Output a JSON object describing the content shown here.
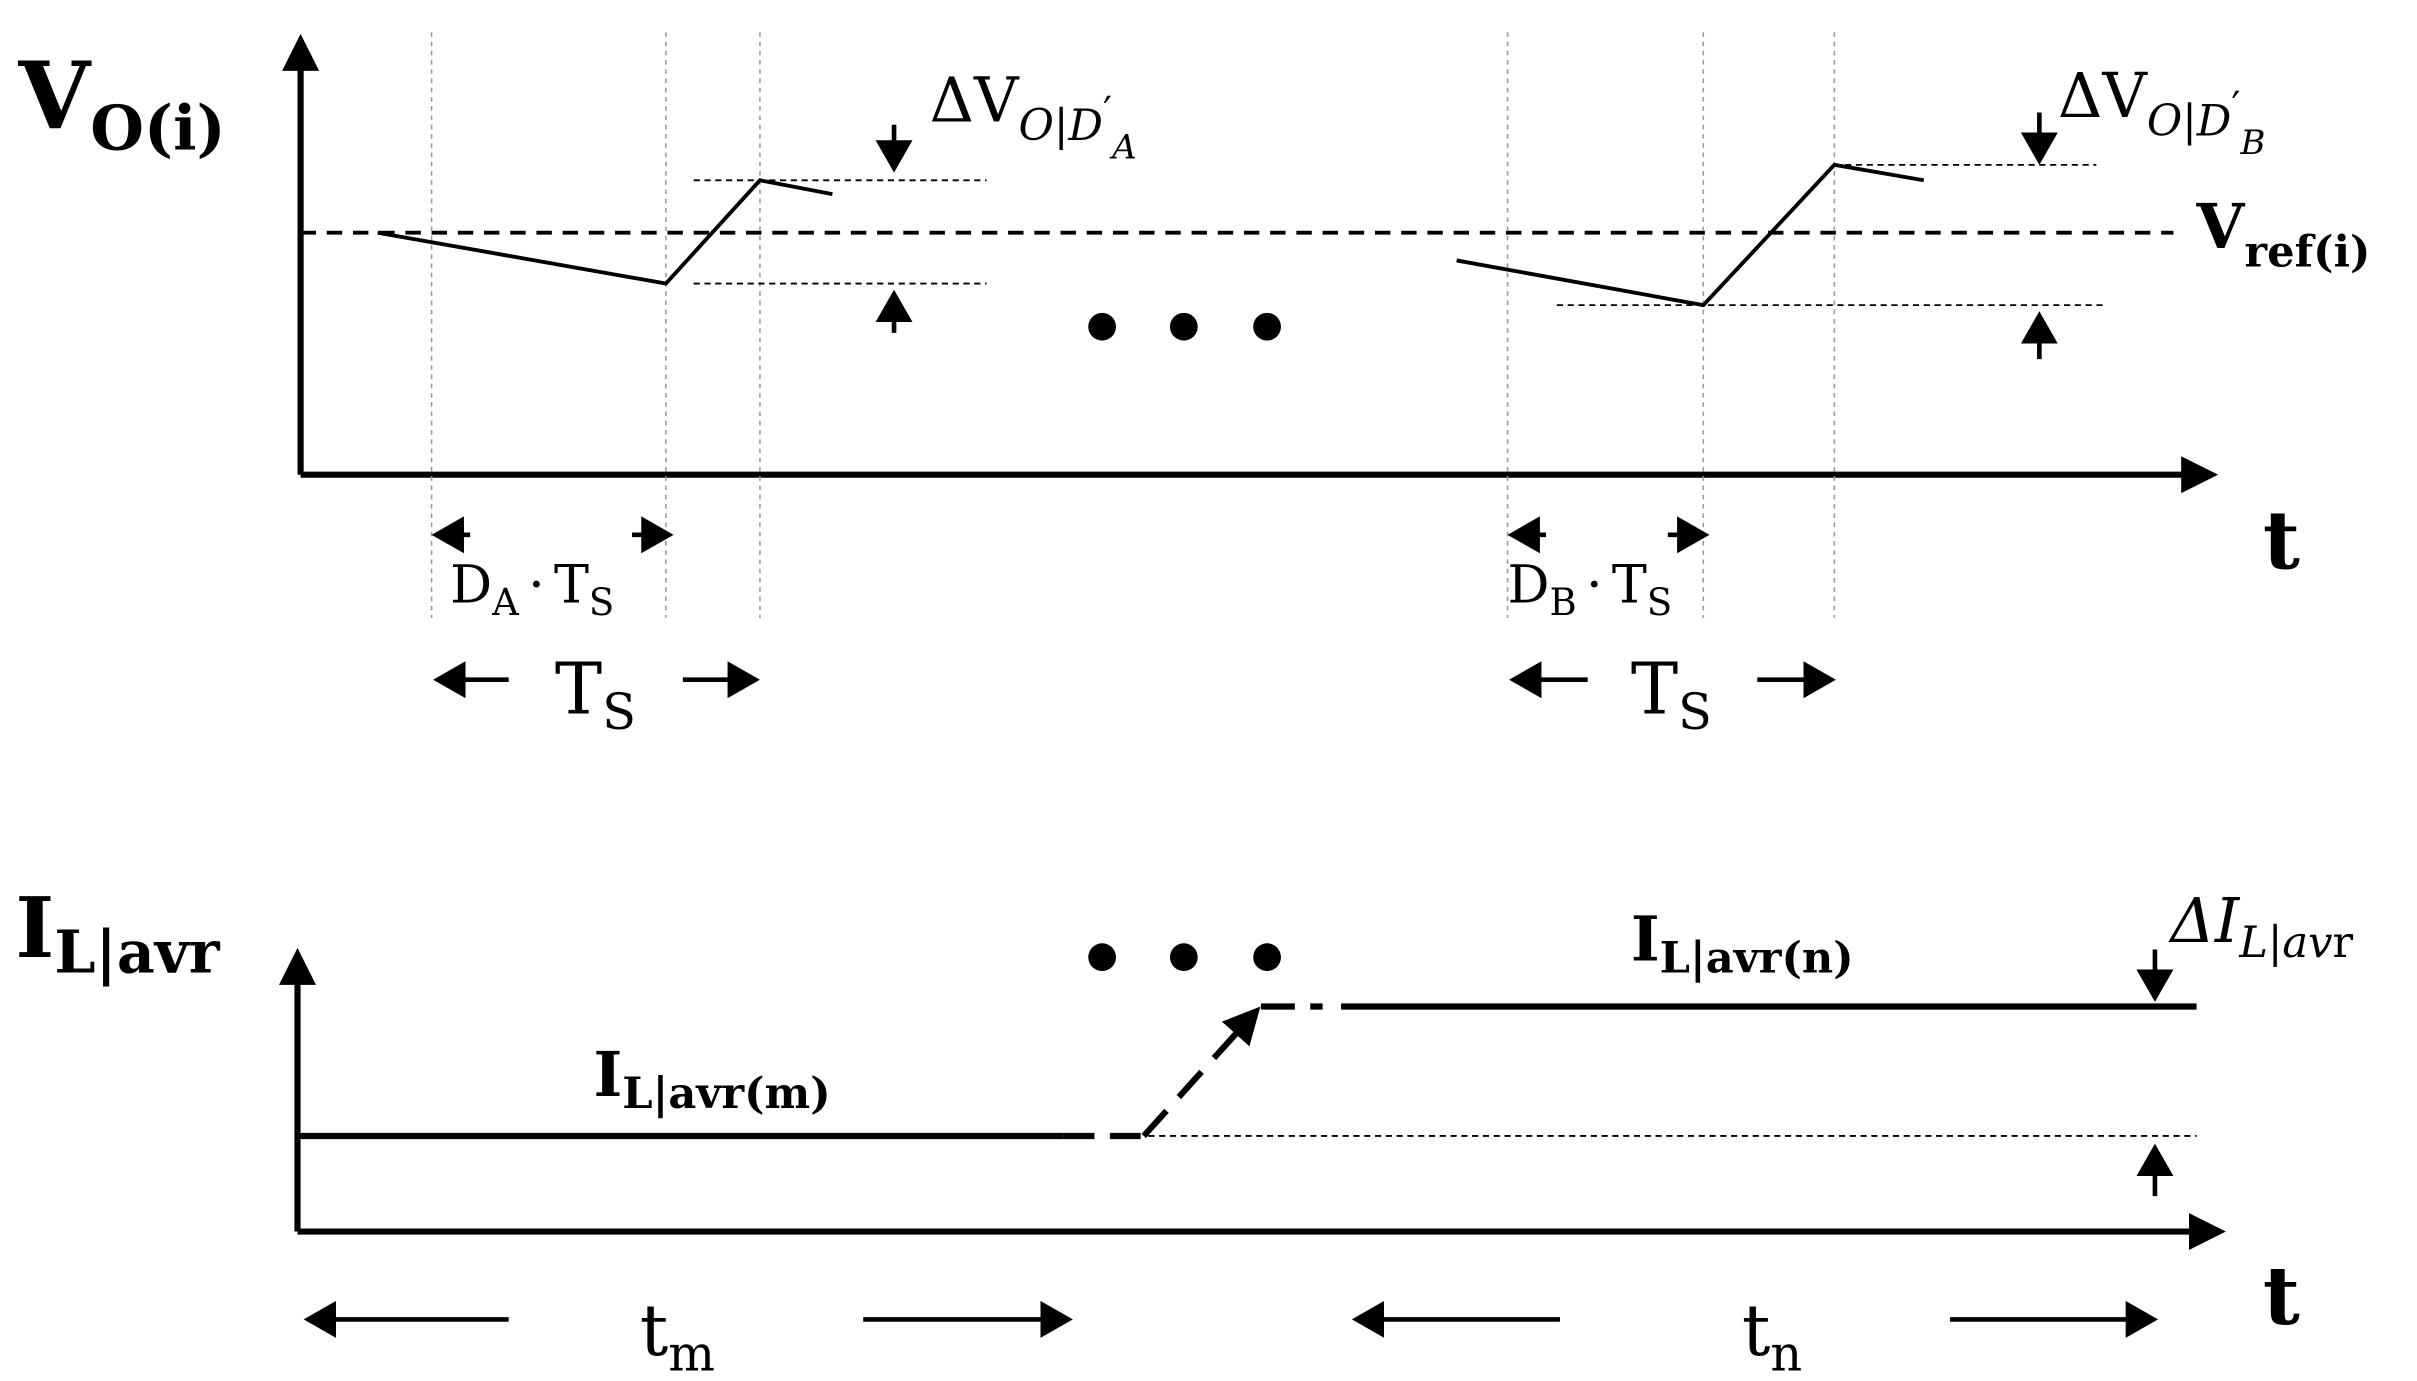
{
  "top": {
    "y_label": {
      "main": "V",
      "sub": "O(i)"
    },
    "x_label": "t",
    "ref_label": {
      "main": "V",
      "sub": "ref(i)"
    },
    "ripple_a": {
      "main": "ΔV",
      "sub": "O|D",
      "prime": "′",
      "subsub": "A"
    },
    "ripple_b": {
      "main": "ΔV",
      "sub": "O|D",
      "prime": "′",
      "subsub": "B"
    },
    "duty_a": {
      "d": "D",
      "d_sub": "A",
      "dot": "·",
      "t": "T",
      "t_sub": "S"
    },
    "duty_b": {
      "d": "D",
      "d_sub": "B",
      "dot": "·",
      "t": "T",
      "t_sub": "S"
    },
    "period_a": {
      "main": "T",
      "sub": "S"
    },
    "period_b": {
      "main": "T",
      "sub": "S"
    }
  },
  "bottom": {
    "y_label": {
      "main": "I",
      "sub": "L|avr"
    },
    "x_label": "t",
    "level_m": {
      "main": "I",
      "sub": "L|avr(m)"
    },
    "level_n": {
      "main": "I",
      "sub": "L|avr(n)"
    },
    "delta": {
      "main": "ΔI",
      "sub": "L|av",
      "tail": "r"
    },
    "t_m": {
      "main": "t",
      "sub": "m"
    },
    "t_n": {
      "main": "t",
      "sub": "n"
    }
  }
}
